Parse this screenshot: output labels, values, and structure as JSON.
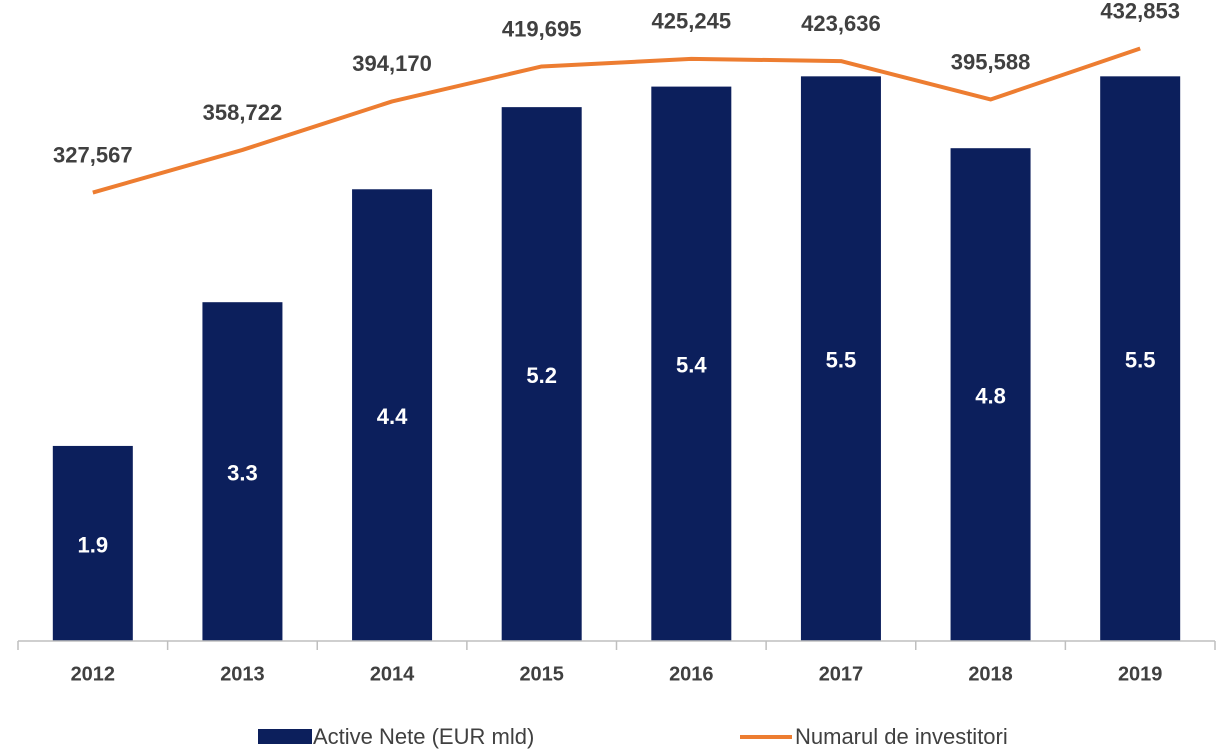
{
  "chart_data": {
    "type": "bar_line",
    "categories": [
      "2012",
      "2013",
      "2014",
      "2015",
      "2016",
      "2017",
      "2018",
      "2019"
    ],
    "series": [
      {
        "name": "Active Nete (EUR mld)",
        "type": "bar",
        "color": "#0c1f5c",
        "values": [
          1.9,
          3.3,
          4.4,
          5.2,
          5.4,
          5.5,
          4.8,
          5.5
        ]
      },
      {
        "name": "Numarul de investitori",
        "type": "line",
        "axis": "y2",
        "color": "#ed7d31",
        "values": [
          327567,
          358722,
          394170,
          419695,
          425245,
          423636,
          395588,
          432853
        ],
        "value_labels": [
          "327,567",
          "358,722",
          "394,170",
          "419,695",
          "425,245",
          "423,636",
          "395,588",
          "432,853"
        ]
      }
    ],
    "ylim": [
      0,
      6
    ],
    "y2lim": [
      0,
      450000
    ]
  }
}
